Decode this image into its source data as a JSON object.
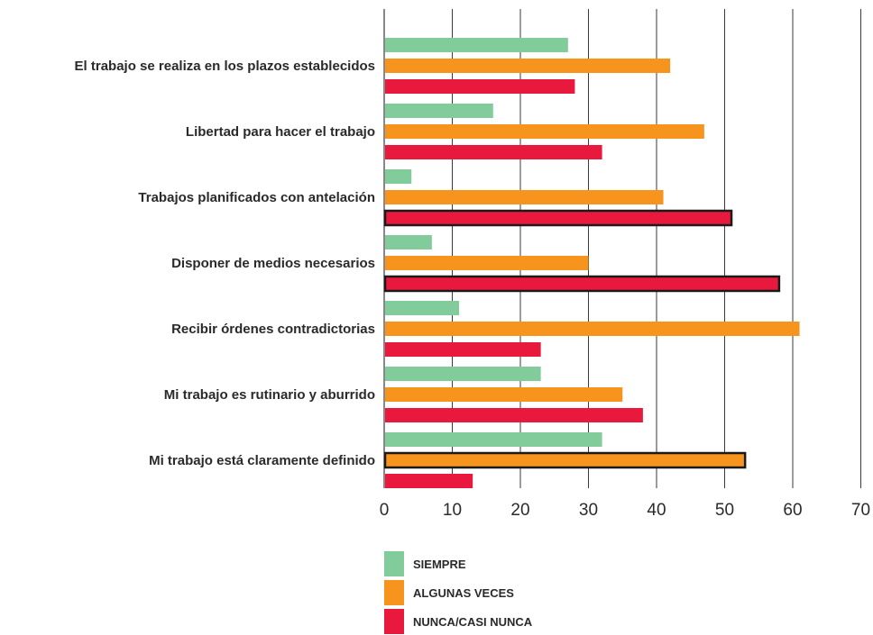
{
  "chart_data": {
    "type": "bar",
    "orientation": "horizontal",
    "title": "",
    "xlabel": "",
    "ylabel": "",
    "xlim": [
      0,
      70
    ],
    "x_ticks": [
      "0",
      "10",
      "20",
      "30",
      "40",
      "50",
      "60",
      "70"
    ],
    "grid": "vertical",
    "legend_position": "bottom",
    "categories": [
      "El trabajo se realiza en los plazos establecidos",
      "Libertad para hacer el trabajo",
      "Trabajos planificados con antelación",
      "Disponer de medios necesarios",
      "Recibir órdenes contradictorias",
      "Mi trabajo es rutinario y aburrido",
      "Mi trabajo está claramente definido"
    ],
    "series": [
      {
        "name": "SIEMPRE",
        "color": "#82cc9b",
        "values": [
          27,
          16,
          4,
          7,
          11,
          23,
          32
        ]
      },
      {
        "name": "ALGUNAS VECES",
        "color": "#f7941d",
        "values": [
          42,
          47,
          41,
          30,
          61,
          35,
          53
        ]
      },
      {
        "name": "NUNCA/CASI NUNCA",
        "color": "#e8193c",
        "values": [
          28,
          32,
          51,
          58,
          23,
          38,
          13
        ]
      }
    ],
    "highlighted": [
      {
        "category_index": 2,
        "series_index": 2
      },
      {
        "category_index": 3,
        "series_index": 2
      },
      {
        "category_index": 6,
        "series_index": 1
      }
    ]
  }
}
